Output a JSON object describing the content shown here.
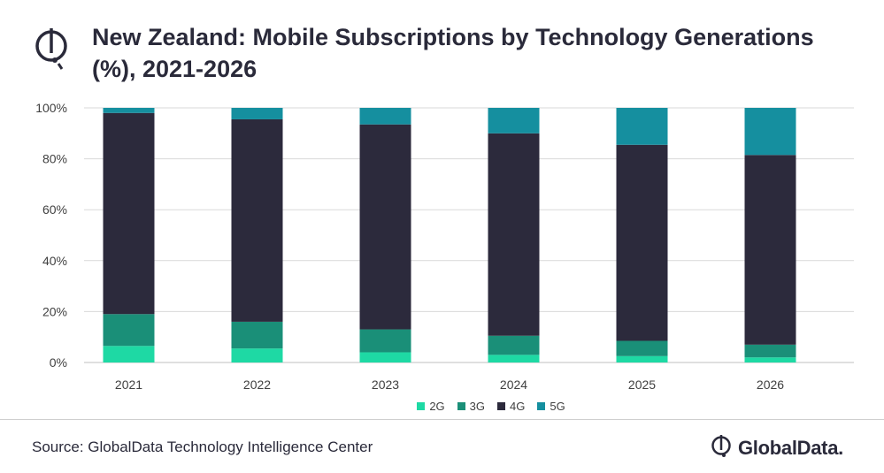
{
  "title": "New Zealand: Mobile Subscriptions by Technology Generations (%), 2021-2026",
  "source": "Source: GlobalData Technology Intelligence Center",
  "brand": {
    "name": "GlobalData."
  },
  "colors": {
    "2G": "#1ed9a4",
    "3G": "#1a8f78",
    "4G": "#2c2a3c",
    "5G": "#158f9f",
    "grid": "#d9d9d9",
    "text": "#404040"
  },
  "chart_data": {
    "type": "bar",
    "stacked": true,
    "categories": [
      "2021",
      "2022",
      "2023",
      "2024",
      "2025",
      "2026"
    ],
    "series": [
      {
        "name": "2G",
        "values": [
          6.5,
          5.5,
          4,
          3,
          2.5,
          2
        ]
      },
      {
        "name": "3G",
        "values": [
          12.5,
          10.5,
          9,
          7.5,
          6,
          5
        ]
      },
      {
        "name": "4G",
        "values": [
          79,
          79.5,
          80.5,
          79.5,
          77,
          74.5
        ]
      },
      {
        "name": "5G",
        "values": [
          2,
          4.5,
          6.5,
          10,
          14.5,
          18.5
        ]
      }
    ],
    "yticks": [
      "0%",
      "20%",
      "40%",
      "60%",
      "80%",
      "100%"
    ],
    "ylim": [
      0,
      100
    ],
    "title": "New Zealand: Mobile Subscriptions by Technology Generations (%), 2021-2026",
    "xlabel": "",
    "ylabel": "",
    "legend": "bottom"
  }
}
